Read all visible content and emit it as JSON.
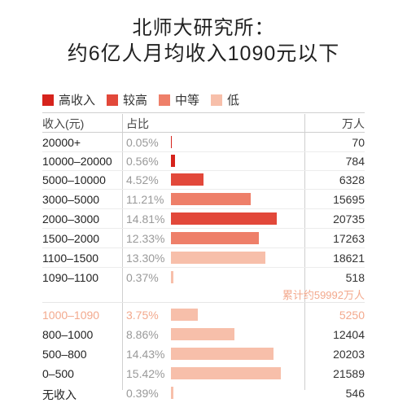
{
  "title_line1": "北师大研究所：",
  "title_line2": "约6亿人月均收入1090元以下",
  "legend": [
    {
      "label": "高收入",
      "color": "#d6231c"
    },
    {
      "label": "较高",
      "color": "#e2483a"
    },
    {
      "label": "中等",
      "color": "#ee7f69"
    },
    {
      "label": "低",
      "color": "#f7bfaa"
    }
  ],
  "headers": {
    "income": "收入(元)",
    "share": "占比",
    "people": "万人"
  },
  "cumulative_note": "累计约59992万人",
  "chart_data": {
    "type": "table",
    "rows": [
      {
        "income": "20000+",
        "share": "0.05%",
        "value": 0.05,
        "people": "70",
        "level": "高收入"
      },
      {
        "income": "10000–20000",
        "share": "0.56%",
        "value": 0.56,
        "people": "784",
        "level": "高收入"
      },
      {
        "income": "5000–10000",
        "share": "4.52%",
        "value": 4.52,
        "people": "6328",
        "level": "较高"
      },
      {
        "income": "3000–5000",
        "share": "11.21%",
        "value": 11.21,
        "people": "15695",
        "level": "中等"
      },
      {
        "income": "2000–3000",
        "share": "14.81%",
        "value": 14.81,
        "people": "20735",
        "level": "较高"
      },
      {
        "income": "1500–2000",
        "share": "12.33%",
        "value": 12.33,
        "people": "17263",
        "level": "中等"
      },
      {
        "income": "1100–1500",
        "share": "13.30%",
        "value": 13.3,
        "people": "18621",
        "level": "低"
      },
      {
        "income": "1090–1100",
        "share": "0.37%",
        "value": 0.37,
        "people": "518",
        "level": "低"
      },
      {
        "income": "1000–1090",
        "share": "3.75%",
        "value": 3.75,
        "people": "5250",
        "level": "低"
      },
      {
        "income": "800–1000",
        "share": "8.86%",
        "value": 8.86,
        "people": "12404",
        "level": "低"
      },
      {
        "income": "500–800",
        "share": "14.43%",
        "value": 14.43,
        "people": "20203",
        "level": "低"
      },
      {
        "income": "0–500",
        "share": "15.42%",
        "value": 15.42,
        "people": "21589",
        "level": "低"
      },
      {
        "income": "无收入",
        "share": "0.39%",
        "value": 0.39,
        "people": "546",
        "level": "低"
      }
    ]
  }
}
